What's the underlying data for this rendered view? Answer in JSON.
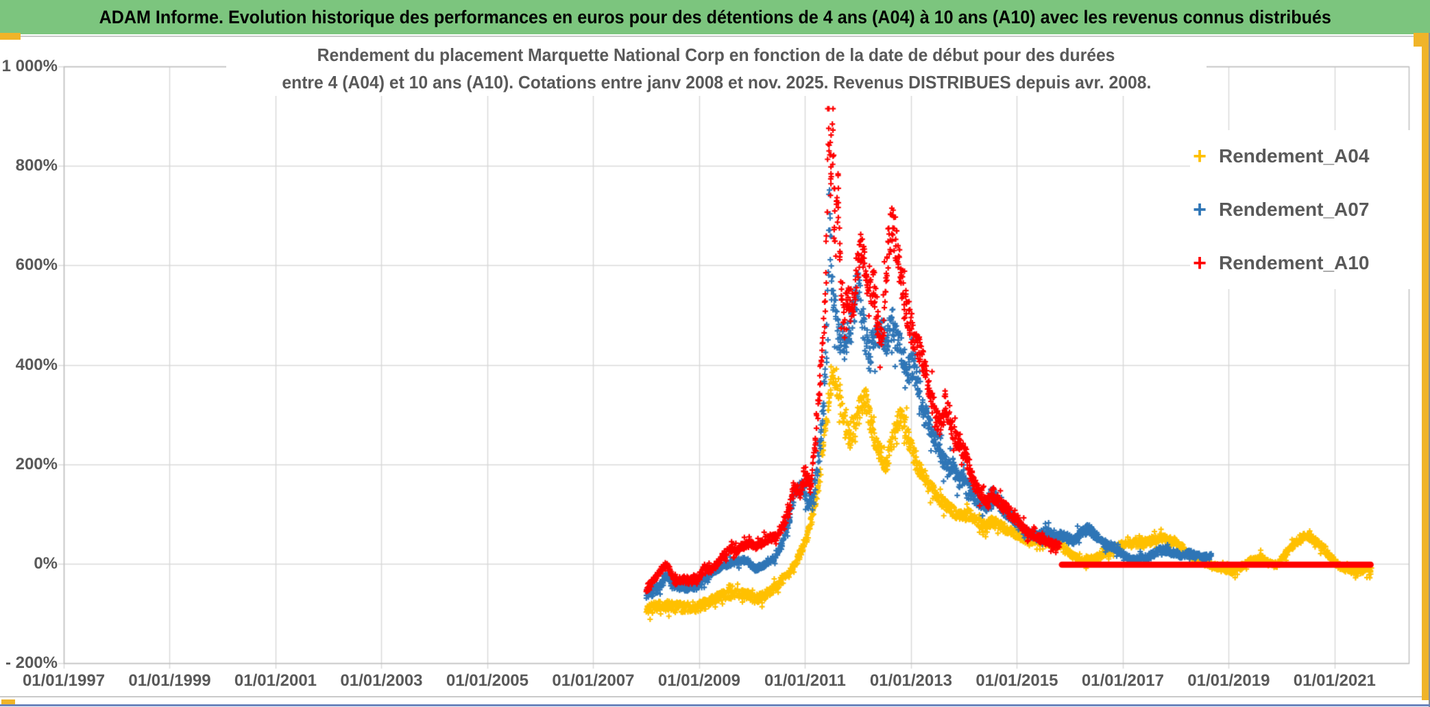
{
  "header": {
    "title": "ADAM Informe. Evolution historique des performances en euros pour des détentions de 4 ans (A04) à 10 ans (A10) avec les revenus connus distribués"
  },
  "frame_colors": {
    "header_green": "#7CC57E",
    "accent_gold": "#F0B429",
    "bottom_line_blue": "#6B84BC"
  },
  "chart_data": {
    "type": "scatter",
    "marker": "plus",
    "title_line1": "Rendement du placement Marquette National Corp en fonction de la date de début pour des durées",
    "title_line2": "entre 4 (A04) et 10 ans (A10). Cotations entre janv 2008 et nov. 2025. Revenus DISTRIBUES depuis avr. 2008.",
    "grid": true,
    "legend_position": "inside-top-right",
    "x_axis": {
      "tick_labels": [
        "01/01/1997",
        "01/01/1999",
        "01/01/2001",
        "01/01/2003",
        "01/01/2005",
        "01/01/2007",
        "01/01/2009",
        "01/01/2011",
        "01/01/2013",
        "01/01/2015",
        "01/01/2017",
        "01/01/2019",
        "01/01/2021"
      ],
      "tick_years": [
        1997,
        1999,
        2001,
        2003,
        2005,
        2007,
        2009,
        2011,
        2013,
        2015,
        2017,
        2019,
        2021
      ],
      "range_years": [
        1997.0,
        2022.4
      ]
    },
    "y_axis": {
      "tick_labels": [
        "1 000%",
        "800%",
        "600%",
        "400%",
        "200%",
        "0%",
        "- 200%"
      ],
      "tick_values_pct": [
        1000,
        800,
        600,
        400,
        200,
        0,
        -200
      ],
      "range_pct": [
        -200,
        1000
      ]
    },
    "colors": {
      "grid": "#D9D9D9",
      "axis": "#BFBFBF",
      "text": "#595959"
    },
    "series": [
      {
        "name": "Rendement_A04",
        "color": "#FFC000",
        "points": [
          [
            2008.0,
            -90
          ],
          [
            2008.2,
            -88
          ],
          [
            2008.4,
            -85
          ],
          [
            2008.6,
            -87
          ],
          [
            2008.8,
            -88
          ],
          [
            2009.0,
            -86
          ],
          [
            2009.15,
            -80
          ],
          [
            2009.3,
            -70
          ],
          [
            2009.45,
            -64
          ],
          [
            2009.6,
            -62
          ],
          [
            2009.75,
            -60
          ],
          [
            2009.9,
            -63
          ],
          [
            2010.0,
            -68
          ],
          [
            2010.1,
            -72
          ],
          [
            2010.2,
            -65
          ],
          [
            2010.35,
            -55
          ],
          [
            2010.5,
            -40
          ],
          [
            2010.65,
            -20
          ],
          [
            2010.8,
            -5
          ],
          [
            2010.95,
            30
          ],
          [
            2011.05,
            60
          ],
          [
            2011.15,
            100
          ],
          [
            2011.25,
            160
          ],
          [
            2011.35,
            240
          ],
          [
            2011.45,
            330
          ],
          [
            2011.52,
            395
          ],
          [
            2011.6,
            360
          ],
          [
            2011.68,
            320
          ],
          [
            2011.75,
            280
          ],
          [
            2011.85,
            250
          ],
          [
            2011.95,
            280
          ],
          [
            2012.05,
            320
          ],
          [
            2012.15,
            330
          ],
          [
            2012.25,
            280
          ],
          [
            2012.35,
            240
          ],
          [
            2012.45,
            215
          ],
          [
            2012.52,
            190
          ],
          [
            2012.6,
            230
          ],
          [
            2012.7,
            270
          ],
          [
            2012.8,
            300
          ],
          [
            2012.9,
            270
          ],
          [
            2013.0,
            235
          ],
          [
            2013.1,
            205
          ],
          [
            2013.2,
            180
          ],
          [
            2013.35,
            155
          ],
          [
            2013.5,
            130
          ],
          [
            2013.65,
            120
          ],
          [
            2013.8,
            105
          ],
          [
            2013.95,
            95
          ],
          [
            2014.1,
            100
          ],
          [
            2014.25,
            85
          ],
          [
            2014.4,
            75
          ],
          [
            2014.55,
            85
          ],
          [
            2014.7,
            75
          ],
          [
            2014.85,
            65
          ],
          [
            2015.0,
            58
          ],
          [
            2015.2,
            48
          ],
          [
            2015.4,
            45
          ],
          [
            2015.6,
            42
          ],
          [
            2015.8,
            38
          ],
          [
            2015.95,
            25
          ],
          [
            2016.1,
            12
          ],
          [
            2016.3,
            5
          ],
          [
            2016.5,
            12
          ],
          [
            2016.7,
            25
          ],
          [
            2016.95,
            35
          ],
          [
            2017.1,
            40
          ],
          [
            2017.3,
            38
          ],
          [
            2017.5,
            45
          ],
          [
            2017.7,
            50
          ],
          [
            2017.85,
            48
          ],
          [
            2018.0,
            42
          ],
          [
            2018.15,
            30
          ],
          [
            2018.3,
            15
          ],
          [
            2018.45,
            5
          ],
          [
            2018.6,
            0
          ],
          [
            2018.75,
            -5
          ],
          [
            2018.95,
            -12
          ],
          [
            2019.1,
            -15
          ],
          [
            2019.25,
            -5
          ],
          [
            2019.45,
            8
          ],
          [
            2019.6,
            12
          ],
          [
            2019.75,
            2
          ],
          [
            2019.9,
            -3
          ],
          [
            2020.05,
            15
          ],
          [
            2020.2,
            35
          ],
          [
            2020.35,
            50
          ],
          [
            2020.5,
            55
          ],
          [
            2020.65,
            45
          ],
          [
            2020.8,
            30
          ],
          [
            2020.95,
            10
          ],
          [
            2021.1,
            -5
          ],
          [
            2021.25,
            -12
          ],
          [
            2021.4,
            -15
          ],
          [
            2021.55,
            -12
          ],
          [
            2021.7,
            -15
          ]
        ]
      },
      {
        "name": "Rendement_A07",
        "color": "#2E75B6",
        "points": [
          [
            2008.0,
            -62
          ],
          [
            2008.15,
            -55
          ],
          [
            2008.3,
            -40
          ],
          [
            2008.38,
            -20
          ],
          [
            2008.5,
            -42
          ],
          [
            2008.65,
            -45
          ],
          [
            2008.8,
            -48
          ],
          [
            2009.0,
            -42
          ],
          [
            2009.15,
            -25
          ],
          [
            2009.3,
            -12
          ],
          [
            2009.45,
            -5
          ],
          [
            2009.6,
            0
          ],
          [
            2009.75,
            5
          ],
          [
            2009.9,
            8
          ],
          [
            2010.0,
            -5
          ],
          [
            2010.1,
            -12
          ],
          [
            2010.25,
            0
          ],
          [
            2010.4,
            10
          ],
          [
            2010.55,
            35
          ],
          [
            2010.7,
            90
          ],
          [
            2010.8,
            145
          ],
          [
            2010.95,
            155
          ],
          [
            2011.05,
            120
          ],
          [
            2011.15,
            135
          ],
          [
            2011.25,
            210
          ],
          [
            2011.35,
            320
          ],
          [
            2011.42,
            480
          ],
          [
            2011.46,
            730
          ],
          [
            2011.5,
            560
          ],
          [
            2011.58,
            500
          ],
          [
            2011.65,
            460
          ],
          [
            2011.75,
            430
          ],
          [
            2011.85,
            470
          ],
          [
            2011.95,
            530
          ],
          [
            2012.02,
            555
          ],
          [
            2012.1,
            480
          ],
          [
            2012.2,
            420
          ],
          [
            2012.3,
            450
          ],
          [
            2012.45,
            470
          ],
          [
            2012.55,
            450
          ],
          [
            2012.65,
            480
          ],
          [
            2012.75,
            450
          ],
          [
            2012.85,
            420
          ],
          [
            2012.95,
            390
          ],
          [
            2013.05,
            400
          ],
          [
            2013.15,
            350
          ],
          [
            2013.25,
            300
          ],
          [
            2013.35,
            280
          ],
          [
            2013.5,
            240
          ],
          [
            2013.6,
            210
          ],
          [
            2013.7,
            190
          ],
          [
            2013.8,
            200
          ],
          [
            2013.9,
            165
          ],
          [
            2014.0,
            175
          ],
          [
            2014.1,
            150
          ],
          [
            2014.2,
            135
          ],
          [
            2014.35,
            115
          ],
          [
            2014.5,
            120
          ],
          [
            2014.6,
            130
          ],
          [
            2014.75,
            105
          ],
          [
            2014.9,
            95
          ],
          [
            2015.0,
            85
          ],
          [
            2015.1,
            70
          ],
          [
            2015.25,
            60
          ],
          [
            2015.4,
            55
          ],
          [
            2015.55,
            65
          ],
          [
            2015.7,
            60
          ],
          [
            2015.9,
            55
          ],
          [
            2016.05,
            45
          ],
          [
            2016.2,
            60
          ],
          [
            2016.35,
            70
          ],
          [
            2016.5,
            55
          ],
          [
            2016.65,
            40
          ],
          [
            2016.8,
            35
          ],
          [
            2016.9,
            30
          ],
          [
            2017.05,
            15
          ],
          [
            2017.2,
            8
          ],
          [
            2017.35,
            10
          ],
          [
            2017.5,
            15
          ],
          [
            2017.65,
            25
          ],
          [
            2017.8,
            28
          ],
          [
            2017.95,
            22
          ],
          [
            2018.1,
            18
          ],
          [
            2018.25,
            22
          ],
          [
            2018.4,
            15
          ],
          [
            2018.55,
            12
          ],
          [
            2018.68,
            14
          ]
        ]
      },
      {
        "name": "Rendement_A10",
        "color": "#FF0000",
        "points": [
          [
            2008.0,
            -50
          ],
          [
            2008.1,
            -40
          ],
          [
            2008.2,
            -25
          ],
          [
            2008.3,
            -10
          ],
          [
            2008.38,
            2
          ],
          [
            2008.45,
            -15
          ],
          [
            2008.55,
            -35
          ],
          [
            2008.7,
            -32
          ],
          [
            2008.85,
            -35
          ],
          [
            2009.0,
            -28
          ],
          [
            2009.1,
            -8
          ],
          [
            2009.2,
            -15
          ],
          [
            2009.3,
            -5
          ],
          [
            2009.45,
            15
          ],
          [
            2009.6,
            30
          ],
          [
            2009.7,
            25
          ],
          [
            2009.8,
            35
          ],
          [
            2009.95,
            40
          ],
          [
            2010.1,
            35
          ],
          [
            2010.2,
            45
          ],
          [
            2010.3,
            50
          ],
          [
            2010.45,
            55
          ],
          [
            2010.6,
            80
          ],
          [
            2010.7,
            110
          ],
          [
            2010.8,
            150
          ],
          [
            2010.9,
            140
          ],
          [
            2011.0,
            185
          ],
          [
            2011.1,
            150
          ],
          [
            2011.2,
            250
          ],
          [
            2011.3,
            390
          ],
          [
            2011.38,
            520
          ],
          [
            2011.44,
            900
          ],
          [
            2011.48,
            780
          ],
          [
            2011.52,
            860
          ],
          [
            2011.56,
            650
          ],
          [
            2011.62,
            740
          ],
          [
            2011.68,
            560
          ],
          [
            2011.75,
            480
          ],
          [
            2011.82,
            550
          ],
          [
            2011.9,
            500
          ],
          [
            2011.97,
            580
          ],
          [
            2012.05,
            640
          ],
          [
            2012.12,
            610
          ],
          [
            2012.2,
            530
          ],
          [
            2012.3,
            555
          ],
          [
            2012.38,
            480
          ],
          [
            2012.45,
            440
          ],
          [
            2012.55,
            600
          ],
          [
            2012.65,
            690
          ],
          [
            2012.73,
            640
          ],
          [
            2012.82,
            570
          ],
          [
            2012.9,
            520
          ],
          [
            2012.97,
            490
          ],
          [
            2013.05,
            460
          ],
          [
            2013.15,
            430
          ],
          [
            2013.25,
            400
          ],
          [
            2013.35,
            350
          ],
          [
            2013.45,
            300
          ],
          [
            2013.55,
            280
          ],
          [
            2013.65,
            320
          ],
          [
            2013.75,
            280
          ],
          [
            2013.85,
            250
          ],
          [
            2013.95,
            235
          ],
          [
            2014.05,
            215
          ],
          [
            2014.15,
            175
          ],
          [
            2014.25,
            150
          ],
          [
            2014.35,
            135
          ],
          [
            2014.45,
            120
          ],
          [
            2014.55,
            140
          ],
          [
            2014.65,
            125
          ],
          [
            2014.75,
            115
          ],
          [
            2014.85,
            105
          ],
          [
            2015.0,
            90
          ],
          [
            2015.1,
            75
          ],
          [
            2015.2,
            65
          ],
          [
            2015.35,
            55
          ],
          [
            2015.5,
            48
          ],
          [
            2015.65,
            42
          ],
          [
            2015.8,
            35
          ]
        ]
      }
    ],
    "red_baseline": {
      "color": "#FF0000",
      "y_pct": -2,
      "x_start_year": 2015.85,
      "x_end_year": 2021.68,
      "thickness_px": 9
    }
  },
  "legend": {
    "marker_glyph": "+"
  }
}
